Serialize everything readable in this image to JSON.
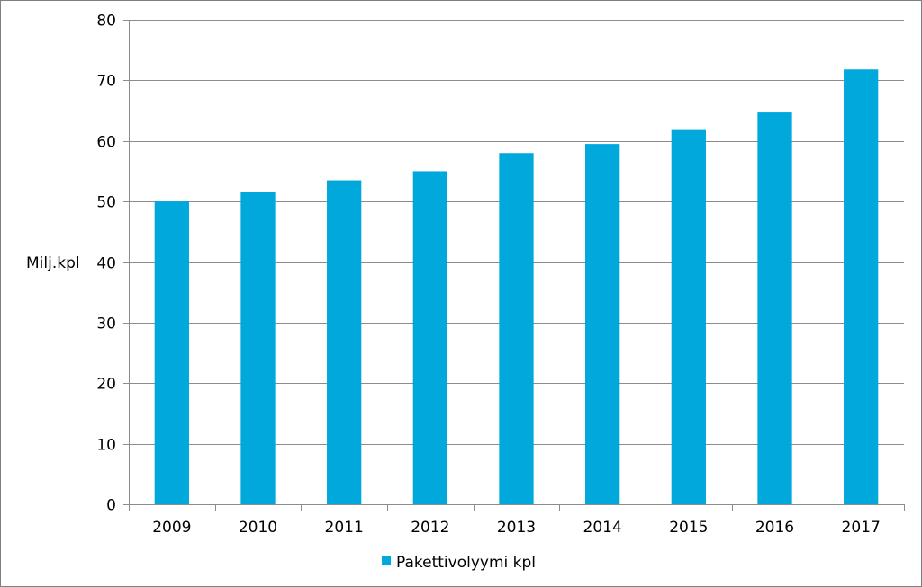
{
  "chart_data": {
    "type": "bar",
    "title": "",
    "xlabel": "",
    "ylabel": "Milj.kpl",
    "categories": [
      "2009",
      "2010",
      "2011",
      "2012",
      "2013",
      "2014",
      "2015",
      "2016",
      "2017"
    ],
    "series": [
      {
        "name": "Pakettivolyymi kpl",
        "color": "#00a8dc",
        "values": [
          50.0,
          51.5,
          53.5,
          55.0,
          58.0,
          59.5,
          61.8,
          64.7,
          71.8
        ]
      }
    ],
    "ylim": [
      0,
      80
    ],
    "yticks": [
      "0",
      "10",
      "20",
      "30",
      "40",
      "50",
      "60",
      "70",
      "80"
    ],
    "grid": true,
    "legend": "bottom"
  }
}
